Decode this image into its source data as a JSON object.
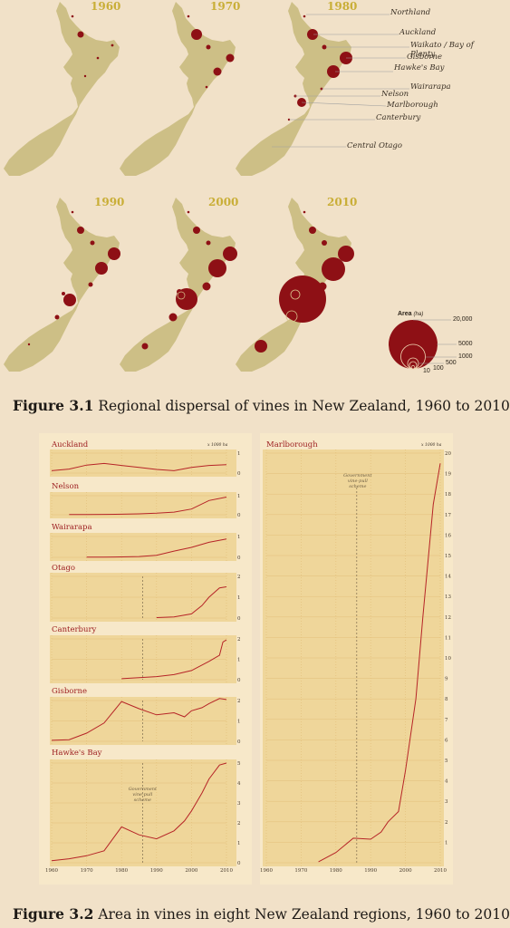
{
  "figure1": {
    "caption_label": "Figure 3.1",
    "caption_text": "Regional dispersal of vines in New Zealand, 1960 to 2010",
    "years": [
      "1960",
      "1970",
      "1980",
      "1990",
      "2000",
      "2010"
    ],
    "region_labels": [
      "Northland",
      "Auckland",
      "Waikato / Bay of Plenty",
      "Gisborne",
      "Hawke's Bay",
      "Wairarapa",
      "Nelson",
      "Marlborough",
      "Canterbury",
      "Central Otago"
    ],
    "legend": {
      "title": "Area",
      "unit": "(ha)",
      "values": [
        20000,
        5000,
        1000,
        500,
        100,
        10
      ],
      "labels": [
        "20,000",
        "5000",
        "1000",
        "500",
        "100",
        "10"
      ]
    },
    "colors": {
      "land": "#cdbf86",
      "dot": "#8e1015",
      "gold": "#c9ae37",
      "page": "#f1e1c8"
    }
  },
  "figure2": {
    "caption_label": "Figure 3.2",
    "caption_text": "Area in vines in eight New Zealand regions, 1960 to 2010",
    "x_ticks": [
      "1960",
      "1970",
      "1980",
      "1990",
      "2000",
      "2010"
    ],
    "unit_label": "x 1000 ha",
    "annotation": "Government vine-pull scheme",
    "colors": {
      "panel": "#efd69a",
      "line": "#b62427",
      "grid": "#e3c07a",
      "title": "#9c1c1f"
    }
  },
  "chart_data": [
    {
      "type": "line",
      "title": "Auckland",
      "ylabel": "x 1000 ha",
      "ylim": [
        0,
        1
      ],
      "x": [
        1960,
        1965,
        1970,
        1975,
        1980,
        1985,
        1990,
        1995,
        2000,
        2005,
        2010
      ],
      "series": [
        {
          "values": [
            0.12,
            0.2,
            0.4,
            0.48,
            0.38,
            0.28,
            0.18,
            0.12,
            0.28,
            0.38,
            0.42
          ]
        }
      ]
    },
    {
      "type": "line",
      "title": "Nelson",
      "ylim": [
        0,
        1
      ],
      "x": [
        1965,
        1970,
        1975,
        1980,
        1985,
        1990,
        1995,
        2000,
        2005,
        2010
      ],
      "series": [
        {
          "values": [
            0.01,
            0.01,
            0.02,
            0.03,
            0.05,
            0.08,
            0.14,
            0.3,
            0.75,
            0.93
          ]
        }
      ]
    },
    {
      "type": "line",
      "title": "Wairarapa",
      "ylim": [
        0,
        1
      ],
      "x": [
        1970,
        1975,
        1980,
        1985,
        1990,
        1995,
        2000,
        2005,
        2010
      ],
      "series": [
        {
          "values": [
            0.01,
            0.01,
            0.02,
            0.04,
            0.1,
            0.3,
            0.48,
            0.72,
            0.88
          ]
        }
      ]
    },
    {
      "type": "line",
      "title": "Otago",
      "ylim": [
        0,
        2
      ],
      "x": [
        1990,
        1995,
        2000,
        2003,
        2005,
        2008,
        2010
      ],
      "series": [
        {
          "values": [
            0.02,
            0.05,
            0.2,
            0.6,
            1.0,
            1.45,
            1.5
          ]
        }
      ]
    },
    {
      "type": "line",
      "title": "Canterbury",
      "ylim": [
        0,
        2
      ],
      "x": [
        1980,
        1985,
        1990,
        1995,
        2000,
        2005,
        2008,
        2009,
        2010
      ],
      "series": [
        {
          "values": [
            0.05,
            0.1,
            0.15,
            0.25,
            0.45,
            0.9,
            1.2,
            1.85,
            1.95
          ]
        }
      ]
    },
    {
      "type": "line",
      "title": "Gisborne",
      "ylim": [
        0,
        2
      ],
      "x": [
        1960,
        1965,
        1970,
        1975,
        1980,
        1985,
        1990,
        1995,
        1998,
        2000,
        2003,
        2005,
        2008,
        2010
      ],
      "series": [
        {
          "values": [
            0.05,
            0.08,
            0.4,
            0.9,
            1.95,
            1.6,
            1.3,
            1.4,
            1.2,
            1.5,
            1.65,
            1.85,
            2.1,
            2.05
          ]
        }
      ]
    },
    {
      "type": "line",
      "title": "Hawke's Bay",
      "ylim": [
        0,
        5
      ],
      "x": [
        1960,
        1965,
        1970,
        1975,
        1980,
        1985,
        1990,
        1995,
        1998,
        2000,
        2003,
        2005,
        2008,
        2010
      ],
      "series": [
        {
          "values": [
            0.1,
            0.2,
            0.35,
            0.6,
            1.8,
            1.4,
            1.2,
            1.6,
            2.1,
            2.6,
            3.5,
            4.2,
            4.9,
            5.0
          ]
        }
      ]
    },
    {
      "type": "line",
      "title": "Marlborough",
      "ylabel": "x 1000 ha",
      "ylim": [
        0,
        20
      ],
      "x": [
        1975,
        1980,
        1985,
        1990,
        1993,
        1995,
        1998,
        2000,
        2003,
        2005,
        2008,
        2010
      ],
      "series": [
        {
          "values": [
            0.05,
            0.5,
            1.2,
            1.15,
            1.5,
            2.0,
            2.5,
            4.5,
            8.0,
            12.0,
            17.5,
            19.5
          ]
        }
      ]
    }
  ]
}
